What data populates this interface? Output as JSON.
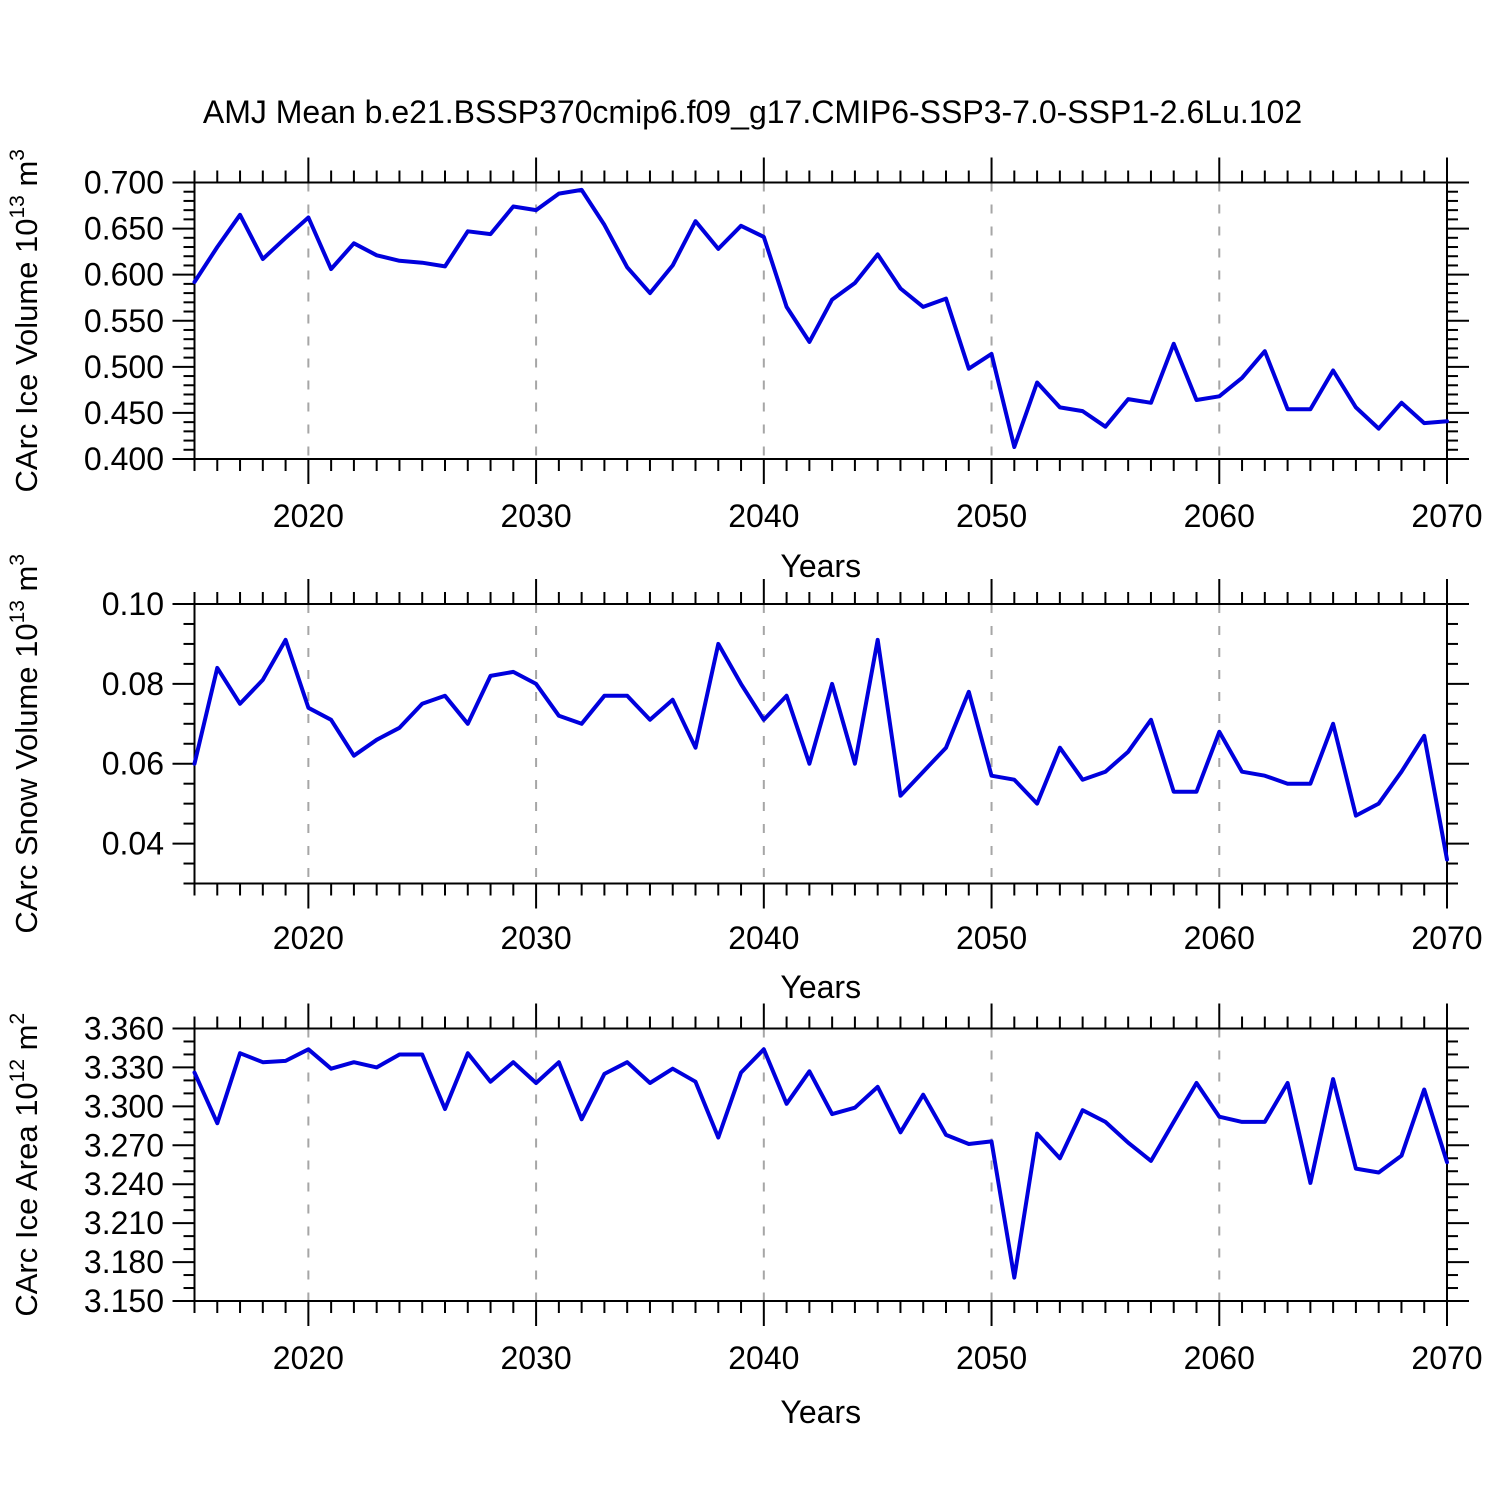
{
  "title": "AMJ Mean b.e21.BSSP370cmip6.f09_g17.CMIP6-SSP3-7.0-SSP1-2.6Lu.102",
  "colors": {
    "line": "#0000dd",
    "grid": "#a6a6a6",
    "axis": "#000000",
    "text": "#000000",
    "background": "#ffffff"
  },
  "chart_data": [
    {
      "type": "line",
      "ylabel": "CArc Ice Volume 10^13 m^3",
      "ylabel_parts": [
        {
          "t": "CArc Ice Volume 10"
        },
        {
          "s": "13"
        },
        {
          "t": " m"
        },
        {
          "s": "3"
        }
      ],
      "xlabel": "Years",
      "xlim": [
        2015,
        2070
      ],
      "ylim": [
        0.4,
        0.7
      ],
      "yticks": [
        {
          "v": 0.4,
          "label": "0.400"
        },
        {
          "v": 0.45,
          "label": "0.450"
        },
        {
          "v": 0.5,
          "label": "0.500"
        },
        {
          "v": 0.55,
          "label": "0.550"
        },
        {
          "v": 0.6,
          "label": "0.600"
        },
        {
          "v": 0.65,
          "label": "0.650"
        },
        {
          "v": 0.7,
          "label": "0.700"
        }
      ],
      "yminor_step": 0.01,
      "xticks": [
        {
          "v": 2020,
          "label": "2020"
        },
        {
          "v": 2030,
          "label": "2030"
        },
        {
          "v": 2040,
          "label": "2040"
        },
        {
          "v": 2050,
          "label": "2050"
        },
        {
          "v": 2060,
          "label": "2060"
        },
        {
          "v": 2070,
          "label": "2070"
        }
      ],
      "xminor_step": 1,
      "grid_x": [
        2020,
        2030,
        2040,
        2050,
        2060
      ],
      "x": [
        2015,
        2016,
        2017,
        2018,
        2019,
        2020,
        2021,
        2022,
        2023,
        2024,
        2025,
        2026,
        2027,
        2028,
        2029,
        2030,
        2031,
        2032,
        2033,
        2034,
        2035,
        2036,
        2037,
        2038,
        2039,
        2040,
        2041,
        2042,
        2043,
        2044,
        2045,
        2046,
        2047,
        2048,
        2049,
        2050,
        2051,
        2052,
        2053,
        2054,
        2055,
        2056,
        2057,
        2058,
        2059,
        2060,
        2061,
        2062,
        2063,
        2064,
        2065,
        2066,
        2067,
        2068,
        2069,
        2070
      ],
      "values": [
        0.592,
        0.63,
        0.665,
        0.617,
        0.64,
        0.662,
        0.606,
        0.634,
        0.621,
        0.615,
        0.613,
        0.609,
        0.647,
        0.644,
        0.674,
        0.67,
        0.688,
        0.692,
        0.654,
        0.608,
        0.58,
        0.61,
        0.658,
        0.628,
        0.653,
        0.641,
        0.565,
        0.527,
        0.573,
        0.591,
        0.622,
        0.585,
        0.565,
        0.574,
        0.498,
        0.514,
        0.413,
        0.483,
        0.456,
        0.452,
        0.435,
        0.465,
        0.461,
        0.525,
        0.464,
        0.468,
        0.488,
        0.517,
        0.454,
        0.454,
        0.496,
        0.456,
        0.433,
        0.461,
        0.439,
        0.441
      ]
    },
    {
      "type": "line",
      "ylabel": "CArc Snow Volume 10^13 m^3",
      "ylabel_parts": [
        {
          "t": "CArc Snow Volume 10"
        },
        {
          "s": "13"
        },
        {
          "t": " m"
        },
        {
          "s": "3"
        }
      ],
      "xlabel": "Years",
      "xlim": [
        2015,
        2070
      ],
      "ylim": [
        0.03,
        0.1
      ],
      "yticks": [
        {
          "v": 0.04,
          "label": "0.04"
        },
        {
          "v": 0.06,
          "label": "0.06"
        },
        {
          "v": 0.08,
          "label": "0.08"
        },
        {
          "v": 0.1,
          "label": "0.10"
        }
      ],
      "yminor_step": 0.005,
      "xticks": [
        {
          "v": 2020,
          "label": "2020"
        },
        {
          "v": 2030,
          "label": "2030"
        },
        {
          "v": 2040,
          "label": "2040"
        },
        {
          "v": 2050,
          "label": "2050"
        },
        {
          "v": 2060,
          "label": "2060"
        },
        {
          "v": 2070,
          "label": "2070"
        }
      ],
      "xminor_step": 1,
      "grid_x": [
        2020,
        2030,
        2040,
        2050,
        2060
      ],
      "x": [
        2015,
        2016,
        2017,
        2018,
        2019,
        2020,
        2021,
        2022,
        2023,
        2024,
        2025,
        2026,
        2027,
        2028,
        2029,
        2030,
        2031,
        2032,
        2033,
        2034,
        2035,
        2036,
        2037,
        2038,
        2039,
        2040,
        2041,
        2042,
        2043,
        2044,
        2045,
        2046,
        2047,
        2048,
        2049,
        2050,
        2051,
        2052,
        2053,
        2054,
        2055,
        2056,
        2057,
        2058,
        2059,
        2060,
        2061,
        2062,
        2063,
        2064,
        2065,
        2066,
        2067,
        2068,
        2069,
        2070
      ],
      "values": [
        0.06,
        0.084,
        0.075,
        0.081,
        0.091,
        0.074,
        0.071,
        0.062,
        0.066,
        0.069,
        0.075,
        0.077,
        0.07,
        0.082,
        0.083,
        0.08,
        0.072,
        0.07,
        0.077,
        0.077,
        0.071,
        0.076,
        0.064,
        0.09,
        0.08,
        0.071,
        0.077,
        0.06,
        0.08,
        0.06,
        0.091,
        0.052,
        0.058,
        0.064,
        0.078,
        0.057,
        0.056,
        0.05,
        0.064,
        0.056,
        0.058,
        0.063,
        0.071,
        0.053,
        0.053,
        0.068,
        0.058,
        0.057,
        0.055,
        0.055,
        0.07,
        0.047,
        0.05,
        0.058,
        0.067,
        0.036
      ]
    },
    {
      "type": "line",
      "ylabel": "CArc Ice Area 10^12 m^2",
      "ylabel_parts": [
        {
          "t": "CArc Ice Area 10"
        },
        {
          "s": "12"
        },
        {
          "t": " m"
        },
        {
          "s": "2"
        }
      ],
      "xlabel": "Years",
      "xlim": [
        2015,
        2070
      ],
      "ylim": [
        3.15,
        3.36
      ],
      "yticks": [
        {
          "v": 3.15,
          "label": "3.150"
        },
        {
          "v": 3.18,
          "label": "3.180"
        },
        {
          "v": 3.21,
          "label": "3.210"
        },
        {
          "v": 3.24,
          "label": "3.240"
        },
        {
          "v": 3.27,
          "label": "3.270"
        },
        {
          "v": 3.3,
          "label": "3.300"
        },
        {
          "v": 3.33,
          "label": "3.330"
        },
        {
          "v": 3.36,
          "label": "3.360"
        }
      ],
      "yminor_step": 0.01,
      "xticks": [
        {
          "v": 2020,
          "label": "2020"
        },
        {
          "v": 2030,
          "label": "2030"
        },
        {
          "v": 2040,
          "label": "2040"
        },
        {
          "v": 2050,
          "label": "2050"
        },
        {
          "v": 2060,
          "label": "2060"
        },
        {
          "v": 2070,
          "label": "2070"
        }
      ],
      "xminor_step": 1,
      "grid_x": [
        2020,
        2030,
        2040,
        2050,
        2060
      ],
      "x": [
        2015,
        2016,
        2017,
        2018,
        2019,
        2020,
        2021,
        2022,
        2023,
        2024,
        2025,
        2026,
        2027,
        2028,
        2029,
        2030,
        2031,
        2032,
        2033,
        2034,
        2035,
        2036,
        2037,
        2038,
        2039,
        2040,
        2041,
        2042,
        2043,
        2044,
        2045,
        2046,
        2047,
        2048,
        2049,
        2050,
        2051,
        2052,
        2053,
        2054,
        2055,
        2056,
        2057,
        2058,
        2059,
        2060,
        2061,
        2062,
        2063,
        2064,
        2065,
        2066,
        2067,
        2068,
        2069,
        2070
      ],
      "values": [
        3.326,
        3.287,
        3.341,
        3.334,
        3.335,
        3.344,
        3.329,
        3.334,
        3.33,
        3.34,
        3.34,
        3.298,
        3.341,
        3.319,
        3.334,
        3.318,
        3.334,
        3.29,
        3.325,
        3.334,
        3.318,
        3.329,
        3.319,
        3.276,
        3.326,
        3.344,
        3.302,
        3.327,
        3.294,
        3.299,
        3.315,
        3.28,
        3.309,
        3.278,
        3.271,
        3.273,
        3.168,
        3.279,
        3.26,
        3.297,
        3.288,
        3.272,
        3.258,
        3.288,
        3.318,
        3.292,
        3.288,
        3.288,
        3.318,
        3.241,
        3.321,
        3.252,
        3.249,
        3.262,
        3.313,
        3.257
      ]
    }
  ]
}
